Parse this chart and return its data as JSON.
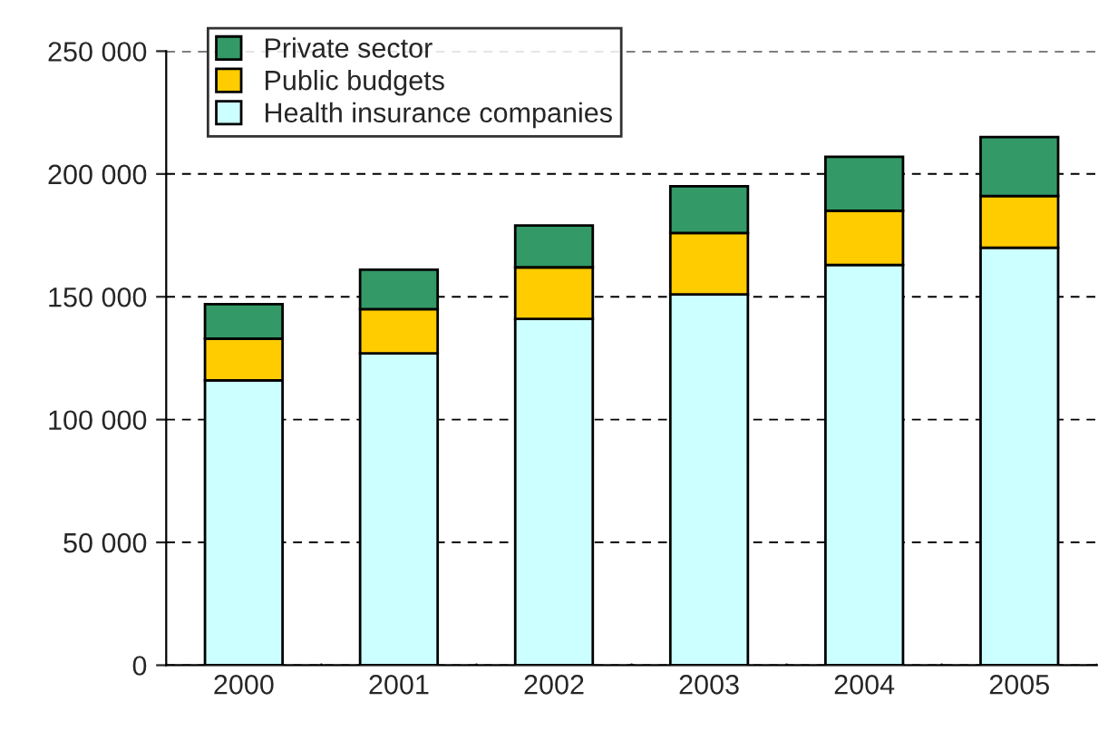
{
  "chart_data": {
    "type": "bar",
    "stacked": true,
    "categories": [
      "2000",
      "2001",
      "2002",
      "2003",
      "2004",
      "2005"
    ],
    "series": [
      {
        "name": "Health insurance companies",
        "color": "#ccffff",
        "values": [
          116000,
          127000,
          141000,
          151000,
          163000,
          170000
        ]
      },
      {
        "name": "Public budgets",
        "color": "#ffcc00",
        "values": [
          17000,
          18000,
          21000,
          25000,
          22000,
          21000
        ]
      },
      {
        "name": "Private sector",
        "color": "#339966",
        "values": [
          14000,
          16000,
          17000,
          19000,
          22000,
          24000
        ]
      }
    ],
    "ylim": [
      0,
      250000
    ],
    "yticks": [
      {
        "value": 0,
        "label": "0"
      },
      {
        "value": 50000,
        "label": "50 000"
      },
      {
        "value": 100000,
        "label": "100 000"
      },
      {
        "value": 150000,
        "label": "150 000"
      },
      {
        "value": 200000,
        "label": "200 000"
      },
      {
        "value": 250000,
        "label": "250 000"
      }
    ],
    "grid": "y",
    "legend": "top left"
  }
}
